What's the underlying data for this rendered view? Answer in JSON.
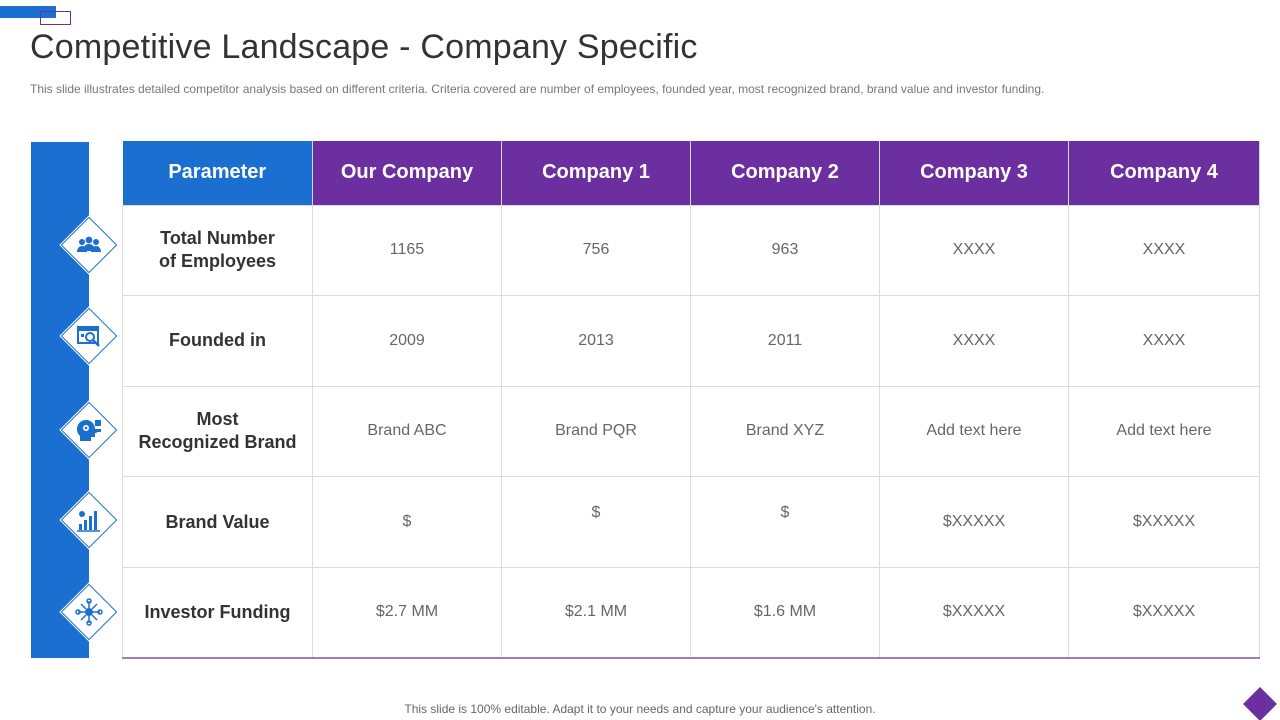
{
  "slide": {
    "title": "Competitive Landscape - Company Specific",
    "subtitle": "This slide illustrates detailed competitor analysis based on different criteria. Criteria covered  are number of employees, founded year, most recognized brand, brand value and investor funding.",
    "footer": "This slide is 100% editable. Adapt it to your needs and capture your audience's attention."
  },
  "colors": {
    "blue": "#1a6fd0",
    "purple": "#6b2fa0"
  },
  "table": {
    "headers": [
      "Parameter",
      "Our Company",
      "Company 1",
      "Company 2",
      "Company 3",
      "Company 4"
    ],
    "rows": [
      {
        "label_line1": "Total Number",
        "label_line2": "of Employees",
        "icon": "people-group-icon",
        "values": [
          "1165",
          "756",
          "963",
          "XXXX",
          "XXXX"
        ]
      },
      {
        "label_line1": "Founded in",
        "label_line2": "",
        "icon": "calendar-search-icon",
        "values": [
          "2009",
          "2013",
          "2011",
          "XXXX",
          "XXXX"
        ]
      },
      {
        "label_line1": "Most",
        "label_line2": "Recognized Brand",
        "icon": "head-gears-icon",
        "values": [
          "Brand ABC",
          "Brand PQR",
          "Brand XYZ",
          "Add text here",
          "Add text here"
        ]
      },
      {
        "label_line1": "Brand Value",
        "label_line2": "",
        "icon": "growth-chart-icon",
        "values": [
          "$",
          "$",
          "$",
          "$XXXXX",
          "$XXXXX"
        ]
      },
      {
        "label_line1": "Investor Funding",
        "label_line2": "",
        "icon": "network-hub-icon",
        "values": [
          "$2.7 MM",
          "$2.1 MM",
          "$1.6 MM",
          "$XXXXX",
          "$XXXXX"
        ]
      }
    ]
  }
}
